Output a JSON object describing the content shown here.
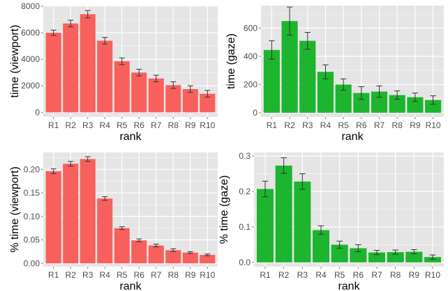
{
  "colors": {
    "panel_bg": "#e5e5e5",
    "grid_major": "#ffffff",
    "grid_minor": "#f2f2f2",
    "bar_red": "#f8605d",
    "bar_green": "#1db52e",
    "error_bar": "#333333",
    "tick_text": "#4d4d4d"
  },
  "chart_data": [
    {
      "type": "bar",
      "xlabel": "rank",
      "ylabel": "time (viewport)",
      "categories": [
        "R1",
        "R2",
        "R3",
        "R4",
        "R5",
        "R6",
        "R7",
        "R8",
        "R9",
        "R10"
      ],
      "values": [
        6000,
        6700,
        7400,
        5400,
        3850,
        3000,
        2550,
        2050,
        1750,
        1400
      ],
      "error": [
        200,
        250,
        280,
        250,
        250,
        250,
        250,
        250,
        250,
        250
      ],
      "ylim": [
        -350,
        8050
      ],
      "yticks": [
        0,
        2000,
        4000,
        6000,
        8000
      ],
      "ytick_labels": [
        "0",
        "2000",
        "4000",
        "6000",
        "8000"
      ],
      "grid": true,
      "color": "#f8605d"
    },
    {
      "type": "bar",
      "xlabel": "rank",
      "ylabel": "time (gaze)",
      "categories": [
        "R1",
        "R2",
        "R3",
        "R4",
        "R5",
        "R6",
        "R7",
        "R8",
        "R9",
        "R10"
      ],
      "values": [
        445,
        650,
        510,
        290,
        200,
        140,
        150,
        125,
        110,
        90
      ],
      "error": [
        65,
        100,
        60,
        50,
        40,
        45,
        40,
        30,
        30,
        30
      ],
      "ylim": [
        -30,
        760
      ],
      "yticks": [
        0,
        200,
        400,
        600
      ],
      "ytick_labels": [
        "0",
        "200",
        "400",
        "600"
      ],
      "grid": true,
      "color": "#1db52e"
    },
    {
      "type": "bar",
      "xlabel": "rank",
      "ylabel": "% time (viewport)",
      "categories": [
        "R1",
        "R2",
        "R3",
        "R4",
        "R5",
        "R6",
        "R7",
        "R8",
        "R9",
        "R10"
      ],
      "values": [
        0.196,
        0.212,
        0.222,
        0.138,
        0.075,
        0.049,
        0.038,
        0.028,
        0.023,
        0.018
      ],
      "error": [
        0.005,
        0.005,
        0.005,
        0.004,
        0.003,
        0.003,
        0.003,
        0.003,
        0.002,
        0.002
      ],
      "ylim": [
        -0.007,
        0.236
      ],
      "yticks": [
        0,
        0.05,
        0.1,
        0.15,
        0.2
      ],
      "ytick_labels": [
        "0.00",
        "0.05",
        "0.10",
        "0.15",
        "0.20"
      ],
      "grid": true,
      "color": "#f8605d"
    },
    {
      "type": "bar",
      "xlabel": "rank",
      "ylabel": "% time (gaze)",
      "categories": [
        "R1",
        "R2",
        "R3",
        "R4",
        "R5",
        "R6",
        "R7",
        "R8",
        "R9",
        "R10"
      ],
      "values": [
        0.207,
        0.273,
        0.228,
        0.091,
        0.05,
        0.04,
        0.028,
        0.029,
        0.03,
        0.015
      ],
      "error": [
        0.022,
        0.022,
        0.022,
        0.012,
        0.01,
        0.01,
        0.006,
        0.006,
        0.006,
        0.006
      ],
      "ylim": [
        -0.012,
        0.31
      ],
      "yticks": [
        0,
        0.1,
        0.2,
        0.3
      ],
      "ytick_labels": [
        "0.0",
        "0.1",
        "0.2",
        "0.3"
      ],
      "grid": true,
      "color": "#1db52e"
    }
  ]
}
